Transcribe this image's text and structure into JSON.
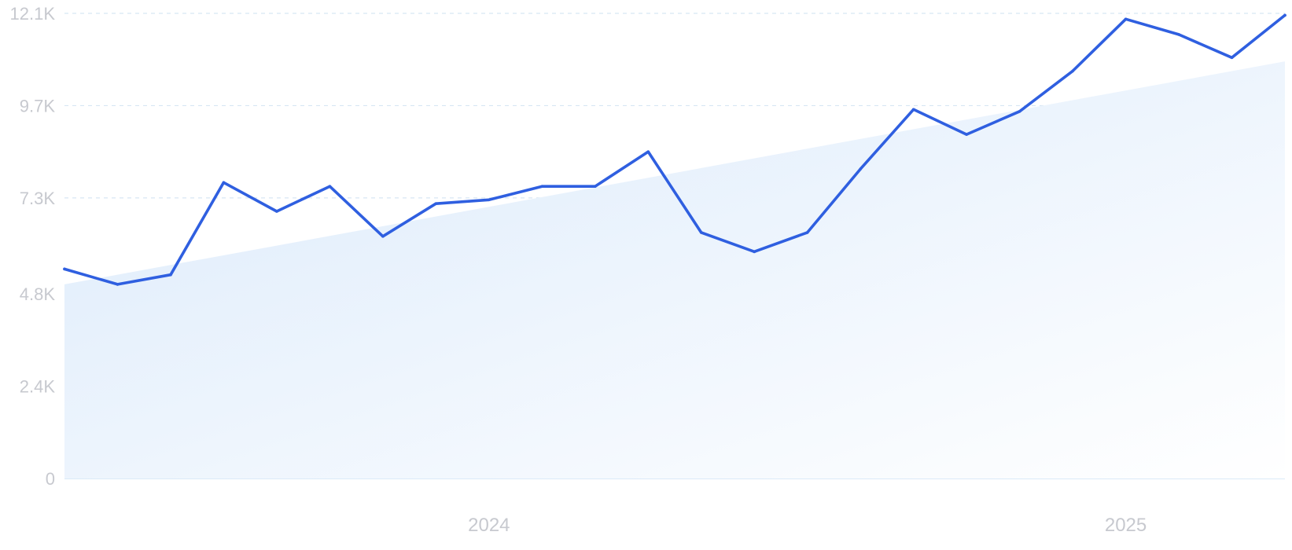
{
  "chart_data": {
    "type": "line",
    "y_ticks": [
      "0",
      "2.4K",
      "4.8K",
      "7.3K",
      "9.7K",
      "12.1K"
    ],
    "y_tick_values": [
      0,
      2400,
      4800,
      7300,
      9700,
      12100
    ],
    "ylim": [
      0,
      12100
    ],
    "x_ticks": [
      {
        "label": "2024",
        "date": "2024-01"
      },
      {
        "label": "2025",
        "date": "2025-01"
      }
    ],
    "x_range": [
      "2023-05",
      "2025-04"
    ],
    "grid": true,
    "series": [
      {
        "values": [
          {
            "x": "2023-05",
            "y": 5450
          },
          {
            "x": "2023-06",
            "y": 5050
          },
          {
            "x": "2023-07",
            "y": 5300
          },
          {
            "x": "2023-08",
            "y": 7700
          },
          {
            "x": "2023-09",
            "y": 6950
          },
          {
            "x": "2023-10",
            "y": 7600
          },
          {
            "x": "2023-11",
            "y": 6300
          },
          {
            "x": "2023-12",
            "y": 7150
          },
          {
            "x": "2024-01",
            "y": 7250
          },
          {
            "x": "2024-02",
            "y": 7600
          },
          {
            "x": "2024-03",
            "y": 7600
          },
          {
            "x": "2024-04",
            "y": 8500
          },
          {
            "x": "2024-05",
            "y": 6400
          },
          {
            "x": "2024-06",
            "y": 5900
          },
          {
            "x": "2024-07",
            "y": 6400
          },
          {
            "x": "2024-08",
            "y": 8050
          },
          {
            "x": "2024-09",
            "y": 9600
          },
          {
            "x": "2024-10",
            "y": 8950
          },
          {
            "x": "2024-11",
            "y": 9550
          },
          {
            "x": "2024-12",
            "y": 10600
          },
          {
            "x": "2025-01",
            "y": 11950
          },
          {
            "x": "2025-02",
            "y": 11550
          },
          {
            "x": "2025-03",
            "y": 10950
          },
          {
            "x": "2025-04",
            "y": 12050
          }
        ]
      },
      {
        "kind": "trend-area",
        "values": [
          {
            "x": "2023-05",
            "y": 5050
          },
          {
            "x": "2025-04",
            "y": 10850
          }
        ]
      }
    ],
    "colors": {
      "line": "#2f5fe0",
      "area_start": "#dbeafb",
      "area_end": "#ffffff",
      "grid": "#d7e6f3",
      "tick_text": "#c7c9cf"
    }
  }
}
